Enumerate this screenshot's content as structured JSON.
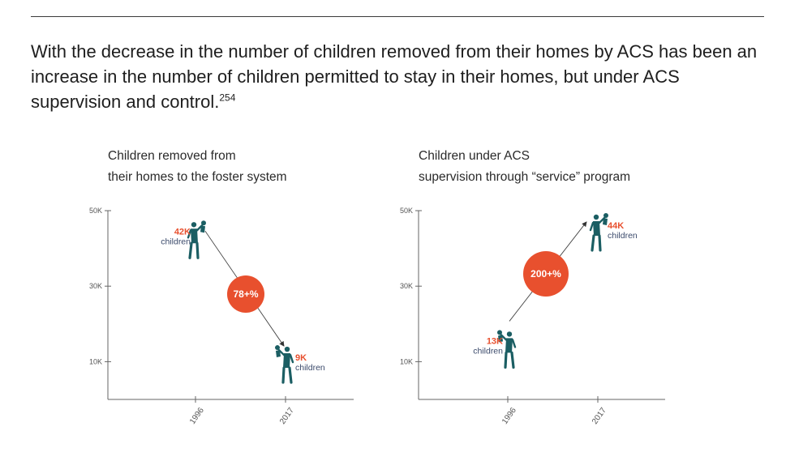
{
  "headline": {
    "text": "With the decrease in the number of children removed from their homes by ACS has been an increase in the number of children permitted to stay in their homes, but under ACS supervision and control.",
    "footnote": "254"
  },
  "colors": {
    "accent": "#e8502e",
    "figure": "#1b5e63",
    "axis": "#666666",
    "unit_text": "#3b4a6b"
  },
  "icons": [
    "adult-carrying-child-icon"
  ],
  "chart_data": [
    {
      "type": "scatter",
      "title_lines": [
        "Children removed from",
        "their homes to the foster system"
      ],
      "x": [
        "1996",
        "2017"
      ],
      "y": [
        42000,
        9000
      ],
      "value_labels": [
        "42K",
        "9K"
      ],
      "unit_label": "children",
      "change_label": "78+%",
      "ylim": [
        0,
        50000
      ],
      "yticks": [
        10000,
        30000,
        50000
      ],
      "ytick_labels": [
        "10K",
        "30K",
        "50K"
      ],
      "xlabel": "",
      "ylabel": "",
      "grid": false
    },
    {
      "type": "scatter",
      "title_lines": [
        "Children under ACS",
        "supervision through “service” program"
      ],
      "x": [
        "1996",
        "2017"
      ],
      "y": [
        13000,
        44000
      ],
      "value_labels": [
        "13K",
        "44K"
      ],
      "unit_label": "children",
      "change_label": "200+%",
      "ylim": [
        0,
        50000
      ],
      "yticks": [
        10000,
        30000,
        50000
      ],
      "ytick_labels": [
        "10K",
        "30K",
        "50K"
      ],
      "xlabel": "",
      "ylabel": "",
      "grid": false
    }
  ]
}
